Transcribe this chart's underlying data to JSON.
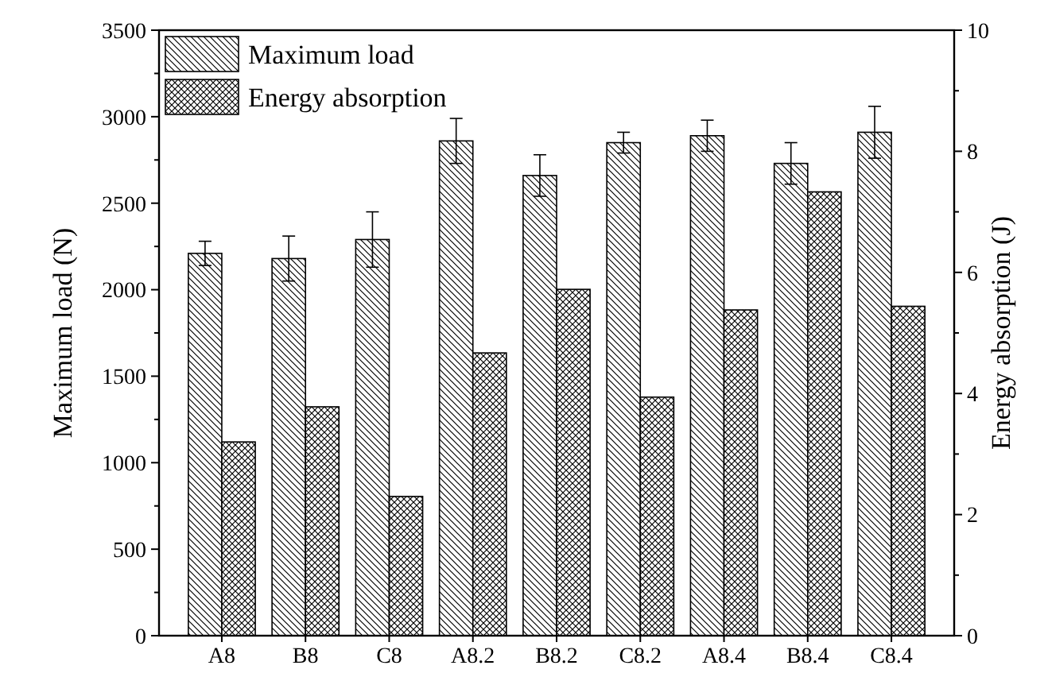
{
  "chart_data": {
    "type": "bar",
    "xlabel": null,
    "ylabel": "Maximum load (N)",
    "y2label": "Energy absorption (J)",
    "categories": [
      "A8",
      "B8",
      "C8",
      "A8.2",
      "B8.2",
      "C8.2",
      "A8.4",
      "B8.4",
      "C8.4"
    ],
    "series": [
      {
        "name": "Maximum load",
        "color": "#000000",
        "values": [
          2210,
          2180,
          2290,
          2860,
          2660,
          2850,
          2890,
          2730,
          2910
        ],
        "errors": [
          70,
          130,
          160,
          130,
          120,
          60,
          90,
          120,
          150
        ]
      },
      {
        "name": "Energy absorption",
        "color": "#000000",
        "axis": "y2",
        "values": [
          3.2,
          3.78,
          2.3,
          4.67,
          5.72,
          3.94,
          5.38,
          7.33,
          5.44
        ]
      }
    ],
    "ylim": [
      0,
      3500
    ],
    "yticks": [
      0,
      {
        "value": 250,
        "label": null
      },
      500,
      {
        "value": 750,
        "label": null
      },
      1000,
      {
        "value": 1250,
        "label": null
      },
      1500,
      {
        "value": 1750,
        "label": null
      },
      2000,
      {
        "value": 2250,
        "label": null
      },
      2500,
      {
        "value": 2750,
        "label": null
      },
      3000,
      {
        "value": 3250,
        "label": null
      },
      3500
    ],
    "y2lim": [
      0,
      10
    ],
    "y2ticks": [
      0,
      {
        "value": 1,
        "label": null
      },
      2,
      {
        "value": 3,
        "label": null
      },
      4,
      {
        "value": 5,
        "label": null
      },
      6,
      {
        "value": 7,
        "label": null
      },
      8,
      {
        "value": 9,
        "label": null
      },
      10
    ],
    "legend": "top left",
    "grid": false
  }
}
